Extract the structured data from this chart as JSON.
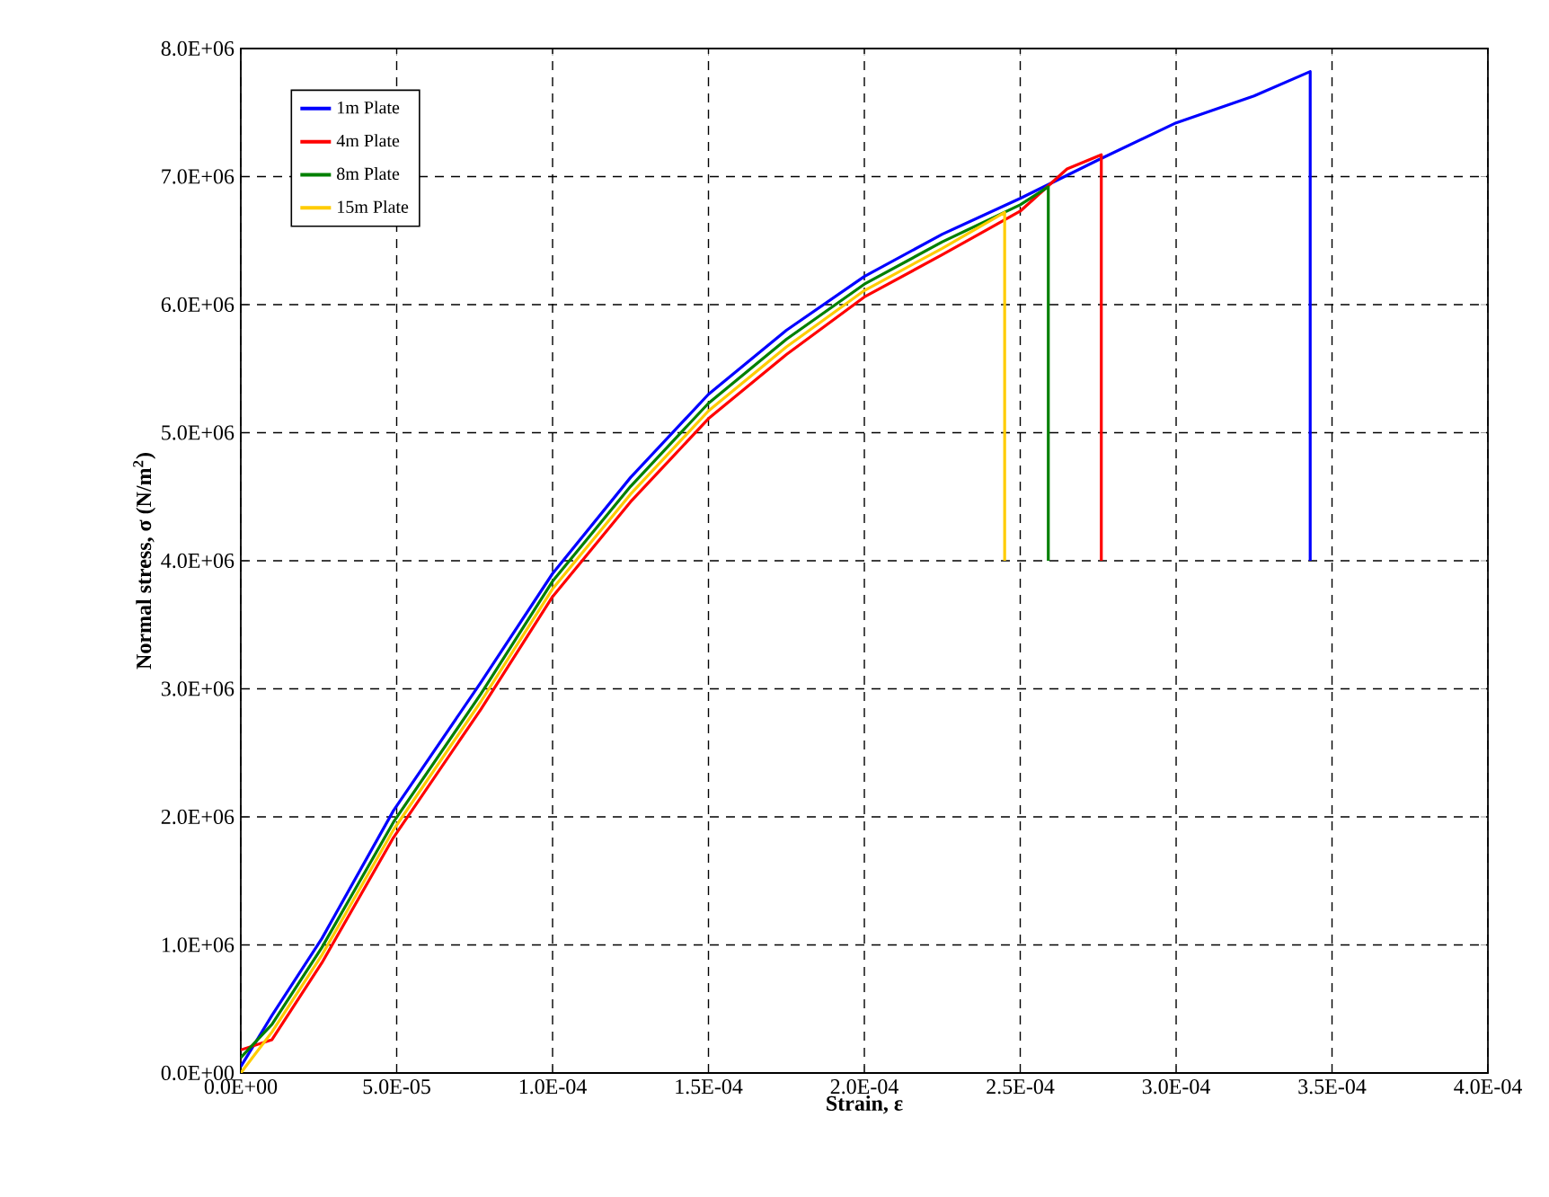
{
  "chart_data": {
    "type": "line",
    "xlabel": "Strain, ε",
    "ylabel": "Normal stress, σ (N/m$^{2}$)",
    "xlim": [
      0,
      0.0004
    ],
    "ylim": [
      0,
      8000000
    ],
    "xticks": [
      {
        "value": 0,
        "label": "0.0E+00"
      },
      {
        "value": 5e-05,
        "label": "5.0E-05"
      },
      {
        "value": 0.0001,
        "label": "1.0E-04"
      },
      {
        "value": 0.00015,
        "label": "1.5E-04"
      },
      {
        "value": 0.0002,
        "label": "2.0E-04"
      },
      {
        "value": 0.00025,
        "label": "2.5E-04"
      },
      {
        "value": 0.0003,
        "label": "3.0E-04"
      },
      {
        "value": 0.00035,
        "label": "3.5E-04"
      },
      {
        "value": 0.0004,
        "label": "4.0E-04"
      }
    ],
    "yticks": [
      {
        "value": 0,
        "label": "0.0E+00"
      },
      {
        "value": 1000000,
        "label": "1.0E+06"
      },
      {
        "value": 2000000,
        "label": "2.0E+06"
      },
      {
        "value": 3000000,
        "label": "3.0E+06"
      },
      {
        "value": 4000000,
        "label": "4.0E+06"
      },
      {
        "value": 5000000,
        "label": "5.0E+06"
      },
      {
        "value": 6000000,
        "label": "6.0E+06"
      },
      {
        "value": 7000000,
        "label": "7.0E+06"
      },
      {
        "value": 8000000,
        "label": "8.0E+06"
      }
    ],
    "grid": true,
    "legend": "top left",
    "marker": "none",
    "line_style": "solid",
    "series": [
      {
        "name": "1m Plate",
        "color": "#0000ff",
        "x": [
          0,
          1e-05,
          2.6e-05,
          4.9e-05,
          7.7e-05,
          0.0001,
          0.000125,
          0.00015,
          0.000175,
          0.0002,
          0.000225,
          0.00025,
          0.000275,
          0.0003,
          0.000325,
          0.000343,
          0.000343
        ],
        "values": [
          50000,
          450000,
          1050000,
          2050000,
          3050000,
          3900000,
          4650000,
          5300000,
          5800000,
          6220000,
          6550000,
          6830000,
          7130000,
          7420000,
          7630000,
          7820000,
          4000000
        ]
      },
      {
        "name": "4m Plate",
        "color": "#ff0000",
        "x": [
          0,
          1e-05,
          2.6e-05,
          4.9e-05,
          7.7e-05,
          0.0001,
          0.000125,
          0.00015,
          0.000175,
          0.0002,
          0.000225,
          0.00025,
          0.000265,
          0.000276,
          0.000276
        ],
        "values": [
          180000,
          260000,
          860000,
          1840000,
          2840000,
          3720000,
          4460000,
          5110000,
          5610000,
          6060000,
          6390000,
          6730000,
          7060000,
          7170000,
          4000000
        ]
      },
      {
        "name": "8m Plate",
        "color": "#008000",
        "x": [
          0,
          1e-05,
          2.6e-05,
          4.9e-05,
          7.7e-05,
          0.0001,
          0.000125,
          0.00015,
          0.000175,
          0.0002,
          0.000225,
          0.00025,
          0.000259,
          0.000259
        ],
        "values": [
          120000,
          380000,
          980000,
          1960000,
          2960000,
          3840000,
          4580000,
          5230000,
          5730000,
          6160000,
          6490000,
          6780000,
          6920000,
          4000000
        ]
      },
      {
        "name": "15m Plate",
        "color": "#ffcc00",
        "x": [
          0,
          1e-05,
          2.6e-05,
          4.9e-05,
          7.7e-05,
          0.0001,
          0.000125,
          0.00015,
          0.000175,
          0.0002,
          0.000225,
          0.000245,
          0.000245
        ],
        "values": [
          0,
          320000,
          920000,
          1900000,
          2900000,
          3780000,
          4520000,
          5170000,
          5670000,
          6110000,
          6440000,
          6720000,
          4000000
        ]
      }
    ]
  }
}
